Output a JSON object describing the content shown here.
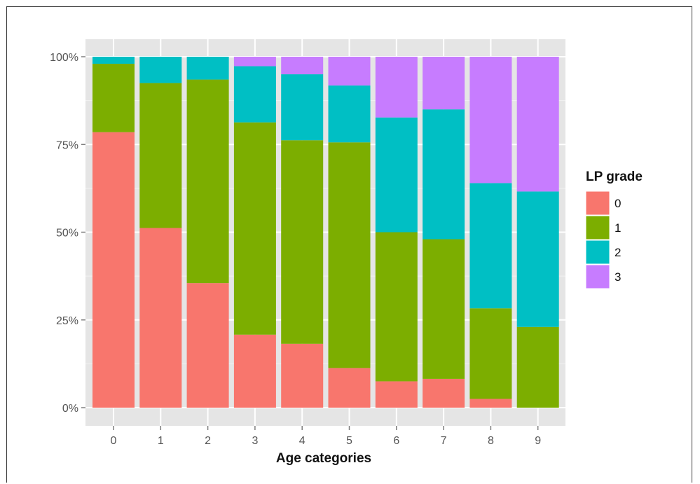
{
  "chart_data": {
    "type": "bar",
    "stacked": true,
    "normalized": true,
    "xlabel": "Age categories",
    "ylabel": "",
    "ylim": [
      0,
      1
    ],
    "yticks": [
      0,
      0.25,
      0.5,
      0.75,
      1
    ],
    "ytick_labels": [
      "0%",
      "25%",
      "50%",
      "75%",
      "100%"
    ],
    "categories": [
      "0",
      "1",
      "2",
      "3",
      "4",
      "5",
      "6",
      "7",
      "8",
      "9"
    ],
    "legend": {
      "title": "LP grade",
      "placement": "right",
      "entries": [
        "0",
        "1",
        "2",
        "3"
      ]
    },
    "grid": true,
    "series": [
      {
        "name": "0",
        "color": "#F8766D",
        "values": [
          0.785,
          0.512,
          0.355,
          0.208,
          0.182,
          0.113,
          0.075,
          0.082,
          0.025,
          0.0
        ]
      },
      {
        "name": "1",
        "color": "#7CAE00",
        "values": [
          0.195,
          0.413,
          0.58,
          0.605,
          0.58,
          0.643,
          0.425,
          0.398,
          0.258,
          0.23
        ]
      },
      {
        "name": "2",
        "color": "#00BFC4",
        "values": [
          0.02,
          0.075,
          0.065,
          0.16,
          0.188,
          0.162,
          0.327,
          0.37,
          0.357,
          0.386
        ]
      },
      {
        "name": "3",
        "color": "#C77CFF",
        "values": [
          0.0,
          0.0,
          0.0,
          0.027,
          0.05,
          0.082,
          0.173,
          0.15,
          0.36,
          0.384
        ]
      }
    ]
  }
}
